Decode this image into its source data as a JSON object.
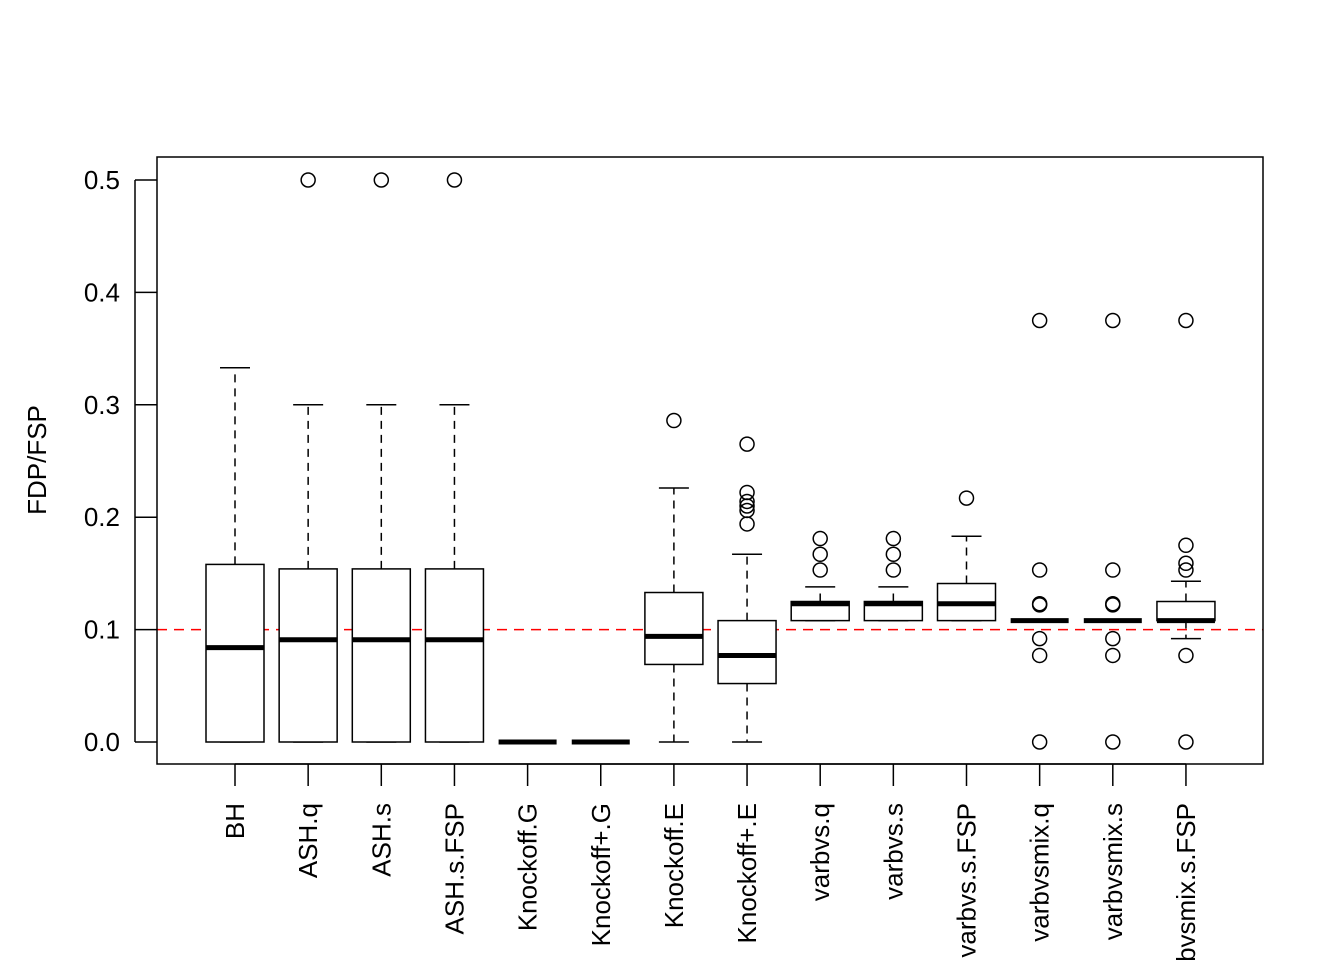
{
  "chart_data": {
    "type": "boxplot",
    "title": "",
    "xlabel": "",
    "ylabel": "FDP/FSP",
    "ylim": [
      0,
      0.5
    ],
    "yticks": [
      "0.0",
      "0.1",
      "0.2",
      "0.3",
      "0.4",
      "0.5"
    ],
    "reference_line": {
      "y": 0.1,
      "color": "#ff0000",
      "style": "dashed"
    },
    "grid": false,
    "categories": [
      "BH",
      "ASH.q",
      "ASH.s",
      "ASH.s.FSP",
      "Knockoff.G",
      "Knockoff+.G",
      "Knockoff.E",
      "Knockoff+.E",
      "varbvs.q",
      "varbvs.s",
      "varbvs.s.FSP",
      "varbvsmix.q",
      "varbvsmix.s",
      "varbvsmix.s.FSP"
    ],
    "boxes": [
      {
        "lower_whisker": 0,
        "q1": 0,
        "median": 0.084,
        "q3": 0.158,
        "upper_whisker": 0.333,
        "outliers": []
      },
      {
        "lower_whisker": 0,
        "q1": 0,
        "median": 0.091,
        "q3": 0.154,
        "upper_whisker": 0.3,
        "outliers": [
          0.5
        ]
      },
      {
        "lower_whisker": 0,
        "q1": 0,
        "median": 0.091,
        "q3": 0.154,
        "upper_whisker": 0.3,
        "outliers": [
          0.5
        ]
      },
      {
        "lower_whisker": 0,
        "q1": 0,
        "median": 0.091,
        "q3": 0.154,
        "upper_whisker": 0.3,
        "outliers": [
          0.5
        ]
      },
      {
        "lower_whisker": 0,
        "q1": 0,
        "median": 0,
        "q3": 0,
        "upper_whisker": 0,
        "outliers": []
      },
      {
        "lower_whisker": 0,
        "q1": 0,
        "median": 0,
        "q3": 0,
        "upper_whisker": 0,
        "outliers": []
      },
      {
        "lower_whisker": 0,
        "q1": 0.069,
        "median": 0.094,
        "q3": 0.133,
        "upper_whisker": 0.226,
        "outliers": [
          0.286
        ]
      },
      {
        "lower_whisker": 0,
        "q1": 0.052,
        "median": 0.077,
        "q3": 0.108,
        "upper_whisker": 0.167,
        "outliers": [
          0.265,
          0.222,
          0.214,
          0.21,
          0.206,
          0.194
        ]
      },
      {
        "lower_whisker": 0.108,
        "q1": 0.108,
        "median": 0.123,
        "q3": 0.125,
        "upper_whisker": 0.138,
        "outliers": [
          0.181,
          0.167,
          0.153
        ]
      },
      {
        "lower_whisker": 0.108,
        "q1": 0.108,
        "median": 0.123,
        "q3": 0.125,
        "upper_whisker": 0.138,
        "outliers": [
          0.181,
          0.167,
          0.153
        ]
      },
      {
        "lower_whisker": 0.108,
        "q1": 0.108,
        "median": 0.123,
        "q3": 0.141,
        "upper_whisker": 0.183,
        "outliers": [
          0.217
        ]
      },
      {
        "lower_whisker": 0.108,
        "q1": 0.108,
        "median": 0.108,
        "q3": 0.108,
        "upper_whisker": 0.108,
        "outliers": [
          0.375,
          0.153,
          0.123,
          0.122,
          0.092,
          0.077,
          0
        ]
      },
      {
        "lower_whisker": 0.108,
        "q1": 0.108,
        "median": 0.108,
        "q3": 0.108,
        "upper_whisker": 0.108,
        "outliers": [
          0.375,
          0.153,
          0.123,
          0.122,
          0.092,
          0.077,
          0
        ]
      },
      {
        "lower_whisker": 0.092,
        "q1": 0.108,
        "median": 0.108,
        "q3": 0.125,
        "upper_whisker": 0.143,
        "outliers": [
          0.375,
          0.175,
          0.159,
          0.153,
          0.077,
          0
        ]
      }
    ]
  }
}
